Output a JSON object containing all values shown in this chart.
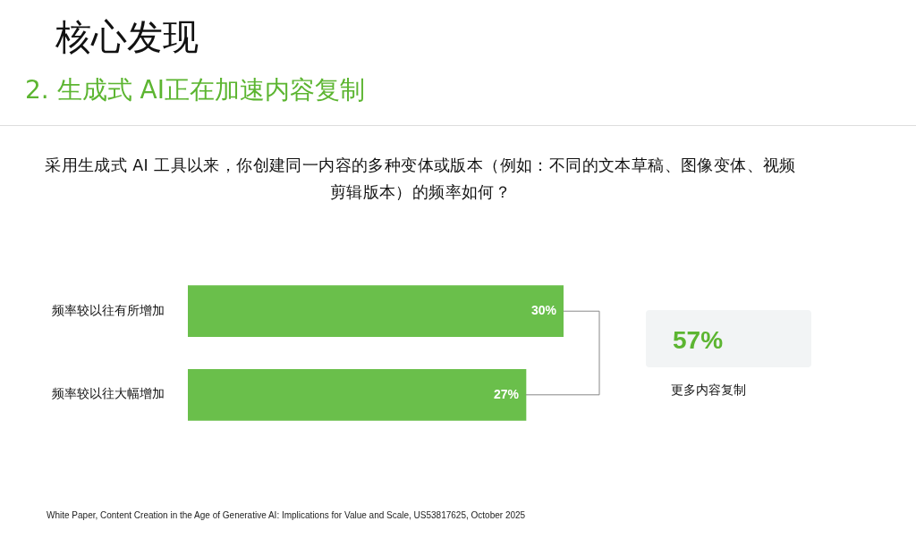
{
  "chart_data": {
    "type": "bar",
    "orientation": "horizontal",
    "title": "核心发现",
    "subtitle": "2. 生成式 AI正在加速内容复制",
    "categories": [
      "频率较以往有所增加",
      "频率较以往大幅增加"
    ],
    "values": [
      30,
      27
    ],
    "color": "#6abf4b",
    "value_labels": [
      "30%",
      "27%"
    ],
    "legend": false,
    "annotations": [
      "采用生成式 AI 工具以来，你创建同一内容的多种变体或版本（例如：不同的文本草稿、图像变体、视频剪辑版本）的频率如何？",
      "57%",
      "更多内容复制",
      "White Paper, Content Creation in the Age of Generative AI: Implications for Value and Scale, US53817625, October 2025"
    ]
  }
}
